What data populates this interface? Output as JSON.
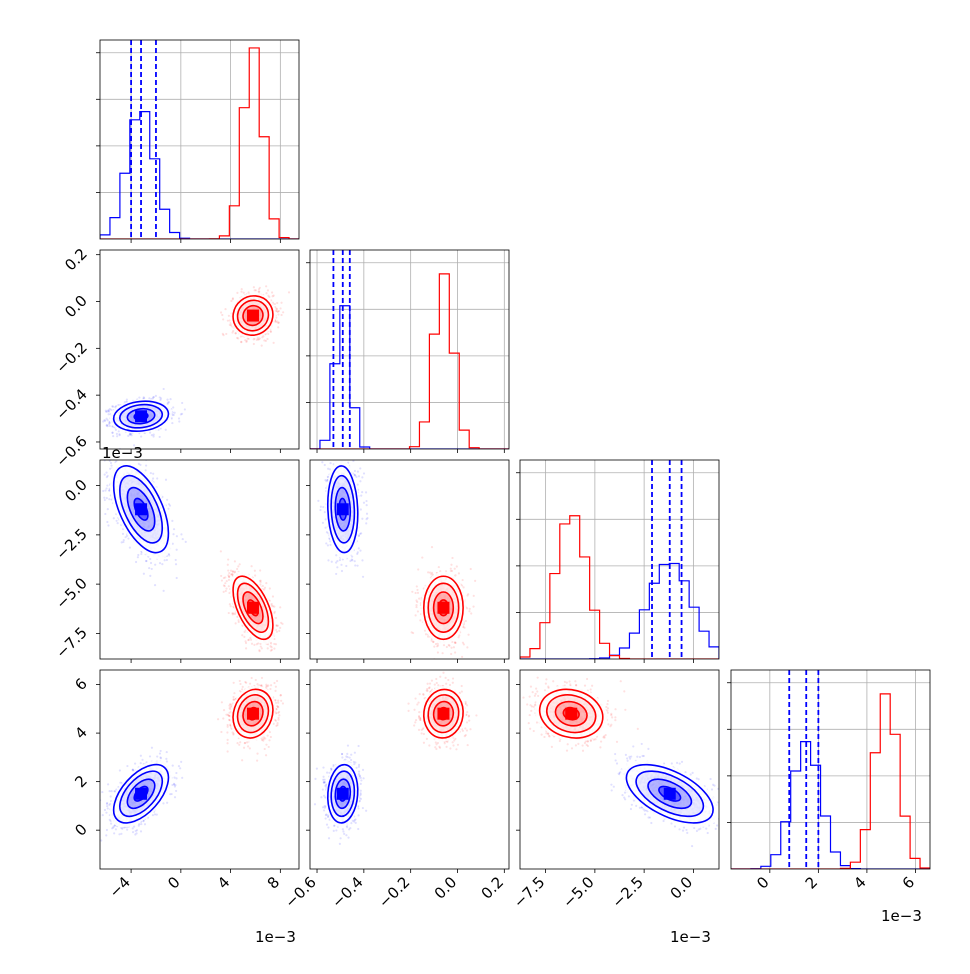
{
  "chart_data": {
    "type": "corner",
    "parameters": [
      {
        "name": "",
        "range": [
          -0.0065,
          0.0095
        ],
        "ticks": [
          -0.004,
          0.0,
          0.004,
          0.008
        ],
        "tick_labels": [
          "−4",
          "0",
          "4",
          "8"
        ],
        "offset_label": "1e−3"
      },
      {
        "name": "",
        "range": [
          -0.63,
          0.22
        ],
        "ticks": [
          -0.6,
          -0.4,
          -0.2,
          0.0,
          0.2
        ],
        "tick_labels": [
          "−0.6",
          "−0.4",
          "−0.2",
          "0.0",
          "0.2"
        ],
        "offset_label": ""
      },
      {
        "name": "",
        "range": [
          -0.0088,
          0.0013
        ],
        "ticks": [
          -0.0075,
          -0.005,
          -0.0025,
          0.0
        ],
        "tick_labels": [
          "−7.5",
          "−5.0",
          "−2.5",
          "0.0"
        ],
        "offset_label": "1e−3"
      },
      {
        "name": "",
        "range": [
          -0.0016,
          0.0066
        ],
        "ticks": [
          0.0,
          0.002,
          0.004,
          0.006
        ],
        "tick_labels": [
          "0",
          "2",
          "4",
          "6"
        ],
        "offset_label": "1e−3"
      }
    ],
    "series": [
      {
        "name": "",
        "color": "#0000ff",
        "mean": [
          -0.0032,
          -0.49,
          -0.0012,
          0.0015
        ],
        "std": [
          0.0011,
          0.032,
          0.0011,
          0.0006
        ],
        "quantiles_16_50_84": [
          [
            -0.004,
            -0.0032,
            -0.002
          ],
          [
            -0.53,
            -0.49,
            -0.46
          ],
          [
            -0.0021,
            -0.0012,
            -0.0006
          ],
          [
            0.0008,
            0.0015,
            0.002
          ]
        ],
        "correlations": {
          "0-1": 0.15,
          "0-2": -0.55,
          "0-3": 0.55,
          "1-2": -0.1,
          "1-3": 0.1,
          "2-3": -0.55
        },
        "hist_peak_fraction": [
          0.4,
          0.45,
          0.3,
          0.4
        ]
      },
      {
        "name": "",
        "color": "#ff0000",
        "mean": [
          0.0058,
          -0.06,
          -0.0062,
          0.0048
        ],
        "std": [
          0.0008,
          0.042,
          0.0008,
          0.0005
        ],
        "correlations": {
          "0-1": 0.05,
          "0-2": -0.55,
          "0-3": 0.15,
          "1-2": 0.0,
          "1-3": 0.05,
          "2-3": -0.15
        },
        "hist_peak_fraction": [
          0.6,
          0.55,
          0.45,
          0.55
        ]
      }
    ],
    "grid": true
  }
}
